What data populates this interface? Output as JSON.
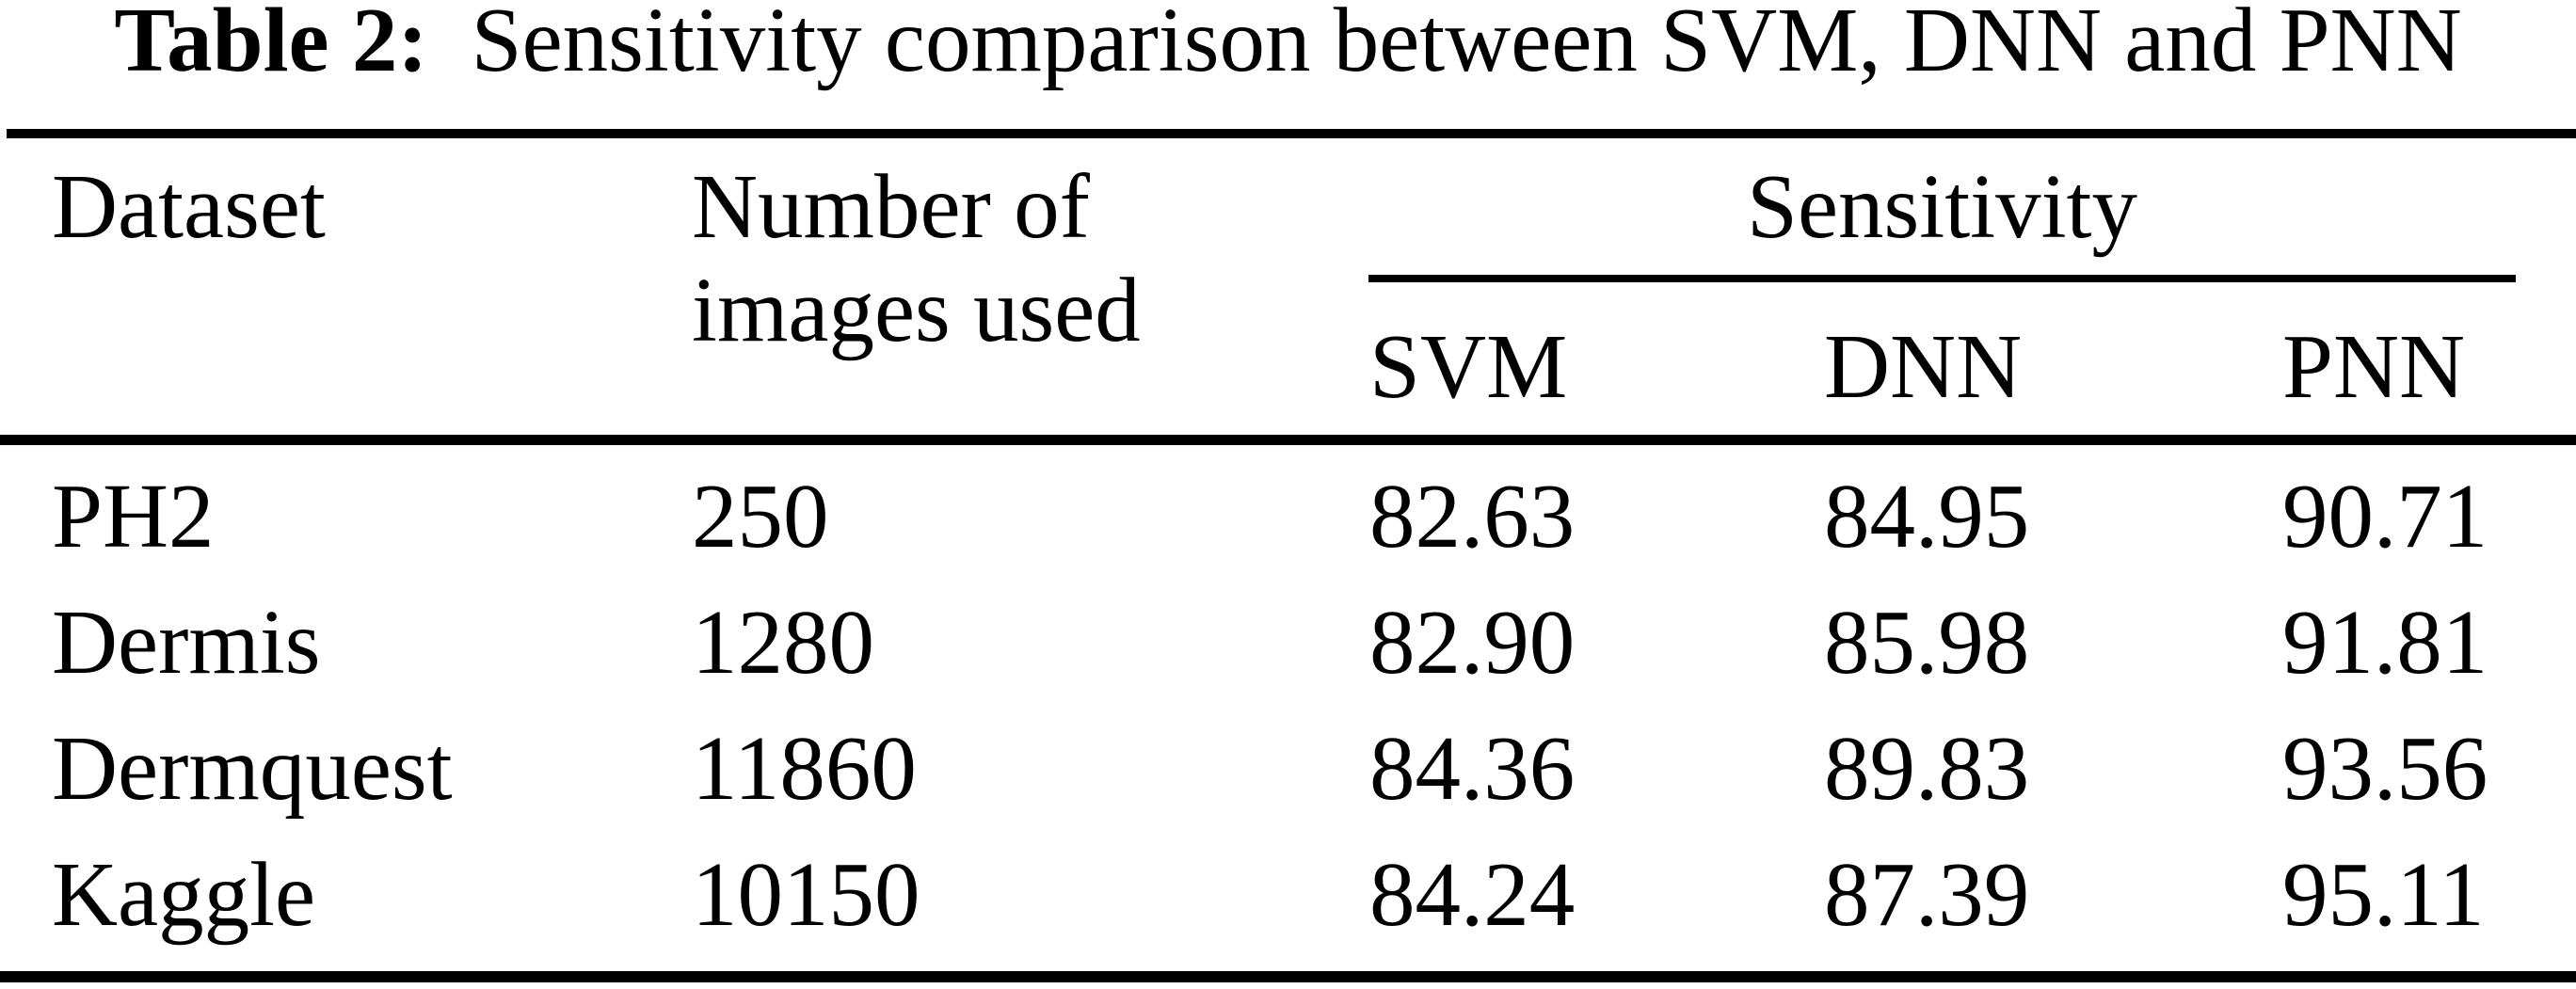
{
  "title": {
    "label": "Table 2:",
    "text": "Sensitivity comparison between SVM, DNN and PNN"
  },
  "colors": {
    "text": "#000000",
    "background": "#ffffff",
    "rule": "#000000"
  },
  "table": {
    "col1_header": "Dataset",
    "col2_header_line1": "Number of",
    "col2_header_line2": "images used",
    "group_header": "Sensitivity",
    "sub_headers": {
      "svm": "SVM",
      "dnn": "DNN",
      "pnn": "PNN"
    },
    "rows": [
      {
        "dataset": "PH2",
        "images": "250",
        "svm": "82.63",
        "dnn": "84.95",
        "pnn": "90.71"
      },
      {
        "dataset": "Dermis",
        "images": "1280",
        "svm": "82.90",
        "dnn": "85.98",
        "pnn": "91.81"
      },
      {
        "dataset": "Dermquest",
        "images": "11860",
        "svm": "84.36",
        "dnn": "89.83",
        "pnn": "93.56"
      },
      {
        "dataset": "Kaggle",
        "images": "10150",
        "svm": "84.24",
        "dnn": "87.39",
        "pnn": "95.11"
      }
    ]
  }
}
